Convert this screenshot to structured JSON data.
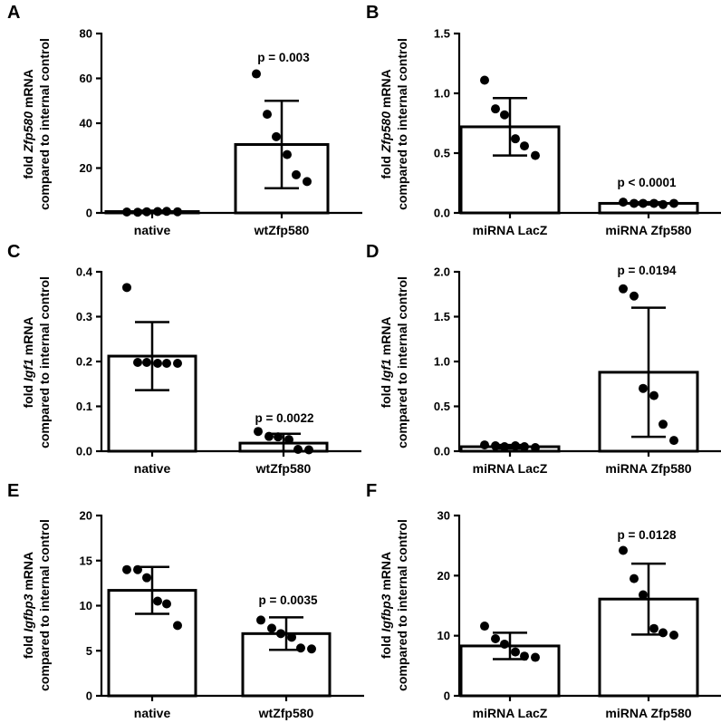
{
  "chart_data": [
    {
      "id": "A",
      "type": "bar",
      "ylabel_italic": "Zfp580",
      "ylabel_prefix": "fold ",
      "ylabel_suffix": " mRNA",
      "ylabel_line2": "compared to internal control",
      "ylim": [
        0,
        80
      ],
      "yticks": [
        0,
        20,
        40,
        60,
        80
      ],
      "categories": [
        "native",
        "wtZfp580"
      ],
      "values": [
        0.6,
        30.5
      ],
      "errors": [
        0.4,
        19.5
      ],
      "points": [
        [
          0.4,
          0.3,
          0.5,
          0.6,
          0.7,
          0.5
        ],
        [
          62,
          44,
          34,
          26,
          17,
          14
        ]
      ],
      "pvalues": [
        "",
        "p = 0.003"
      ]
    },
    {
      "id": "B",
      "type": "bar",
      "ylabel_italic": "Zfp580",
      "ylabel_prefix": "fold ",
      "ylabel_suffix": " mRNA",
      "ylabel_line2": "compared to internal control",
      "ylim": [
        0,
        1.5
      ],
      "yticks": [
        "0.0",
        "0.5",
        "1.0",
        "1.5"
      ],
      "categories": [
        "miRNA LacZ",
        "miRNA Zfp580"
      ],
      "values": [
        0.72,
        0.08
      ],
      "errors": [
        0.24,
        0.01
      ],
      "points": [
        [
          1.11,
          0.87,
          0.82,
          0.62,
          0.56,
          0.48
        ],
        [
          0.09,
          0.08,
          0.08,
          0.08,
          0.07,
          0.08
        ]
      ],
      "pvalues": [
        "",
        "p < 0.0001"
      ]
    },
    {
      "id": "C",
      "type": "bar",
      "ylabel_italic": "Igf1",
      "ylabel_prefix": "fold ",
      "ylabel_suffix": " mRNA",
      "ylabel_line2": "compared to internal control",
      "ylim": [
        0,
        0.4
      ],
      "yticks": [
        "0.0",
        "0.1",
        "0.2",
        "0.3",
        "0.4"
      ],
      "categories": [
        "native",
        "wtZfp580"
      ],
      "values": [
        0.212,
        0.018
      ],
      "errors": [
        0.076,
        0.021
      ],
      "points": [
        [
          0.365,
          0.198,
          0.198,
          0.196,
          0.196,
          0.196
        ],
        [
          0.044,
          0.033,
          0.032,
          0.026,
          0.004,
          0.003
        ]
      ],
      "pvalues": [
        "",
        "p = 0.0022"
      ]
    },
    {
      "id": "D",
      "type": "bar",
      "ylabel_italic": "Igf1",
      "ylabel_prefix": "fold ",
      "ylabel_suffix": " mRNA",
      "ylabel_line2": "compared to internal control",
      "ylim": [
        0,
        2.0
      ],
      "yticks": [
        "0.0",
        "0.5",
        "1.0",
        "1.5",
        "2.0"
      ],
      "categories": [
        "miRNA LacZ",
        "miRNA Zfp580"
      ],
      "values": [
        0.05,
        0.88
      ],
      "errors": [
        0.02,
        0.72
      ],
      "points": [
        [
          0.07,
          0.06,
          0.05,
          0.06,
          0.05,
          0.04
        ],
        [
          1.81,
          1.73,
          0.7,
          0.62,
          0.3,
          0.12
        ]
      ],
      "pvalues": [
        "",
        "p = 0.0194"
      ]
    },
    {
      "id": "E",
      "type": "bar",
      "ylabel_italic": "Igfbp3",
      "ylabel_prefix": "fold ",
      "ylabel_suffix": " mRNA",
      "ylabel_line2": "compared to internal control",
      "ylim": [
        0,
        20
      ],
      "yticks": [
        0,
        5,
        10,
        15,
        20
      ],
      "categories": [
        "native",
        "wtZfp580"
      ],
      "values": [
        11.7,
        6.9
      ],
      "errors": [
        2.6,
        1.8
      ],
      "points": [
        [
          14.0,
          14.0,
          13.1,
          10.5,
          10.2,
          7.8
        ],
        [
          8.4,
          7.5,
          6.9,
          6.5,
          5.3,
          5.2
        ]
      ],
      "pvalues": [
        "",
        "p = 0.0035"
      ]
    },
    {
      "id": "F",
      "type": "bar",
      "ylabel_italic": "Igfbp3",
      "ylabel_prefix": "fold ",
      "ylabel_suffix": " mRNA",
      "ylabel_line2": "compared to internal control",
      "ylim": [
        0,
        30
      ],
      "yticks": [
        0,
        10,
        20,
        30
      ],
      "categories": [
        "miRNA LacZ",
        "miRNA Zfp580"
      ],
      "values": [
        8.3,
        16.1
      ],
      "errors": [
        2.2,
        5.9
      ],
      "points": [
        [
          11.6,
          9.5,
          8.6,
          7.3,
          6.6,
          6.4
        ],
        [
          24.2,
          19.5,
          16.8,
          11.2,
          10.5,
          10.1
        ]
      ],
      "pvalues": [
        "",
        "p = 0.0128"
      ]
    }
  ]
}
